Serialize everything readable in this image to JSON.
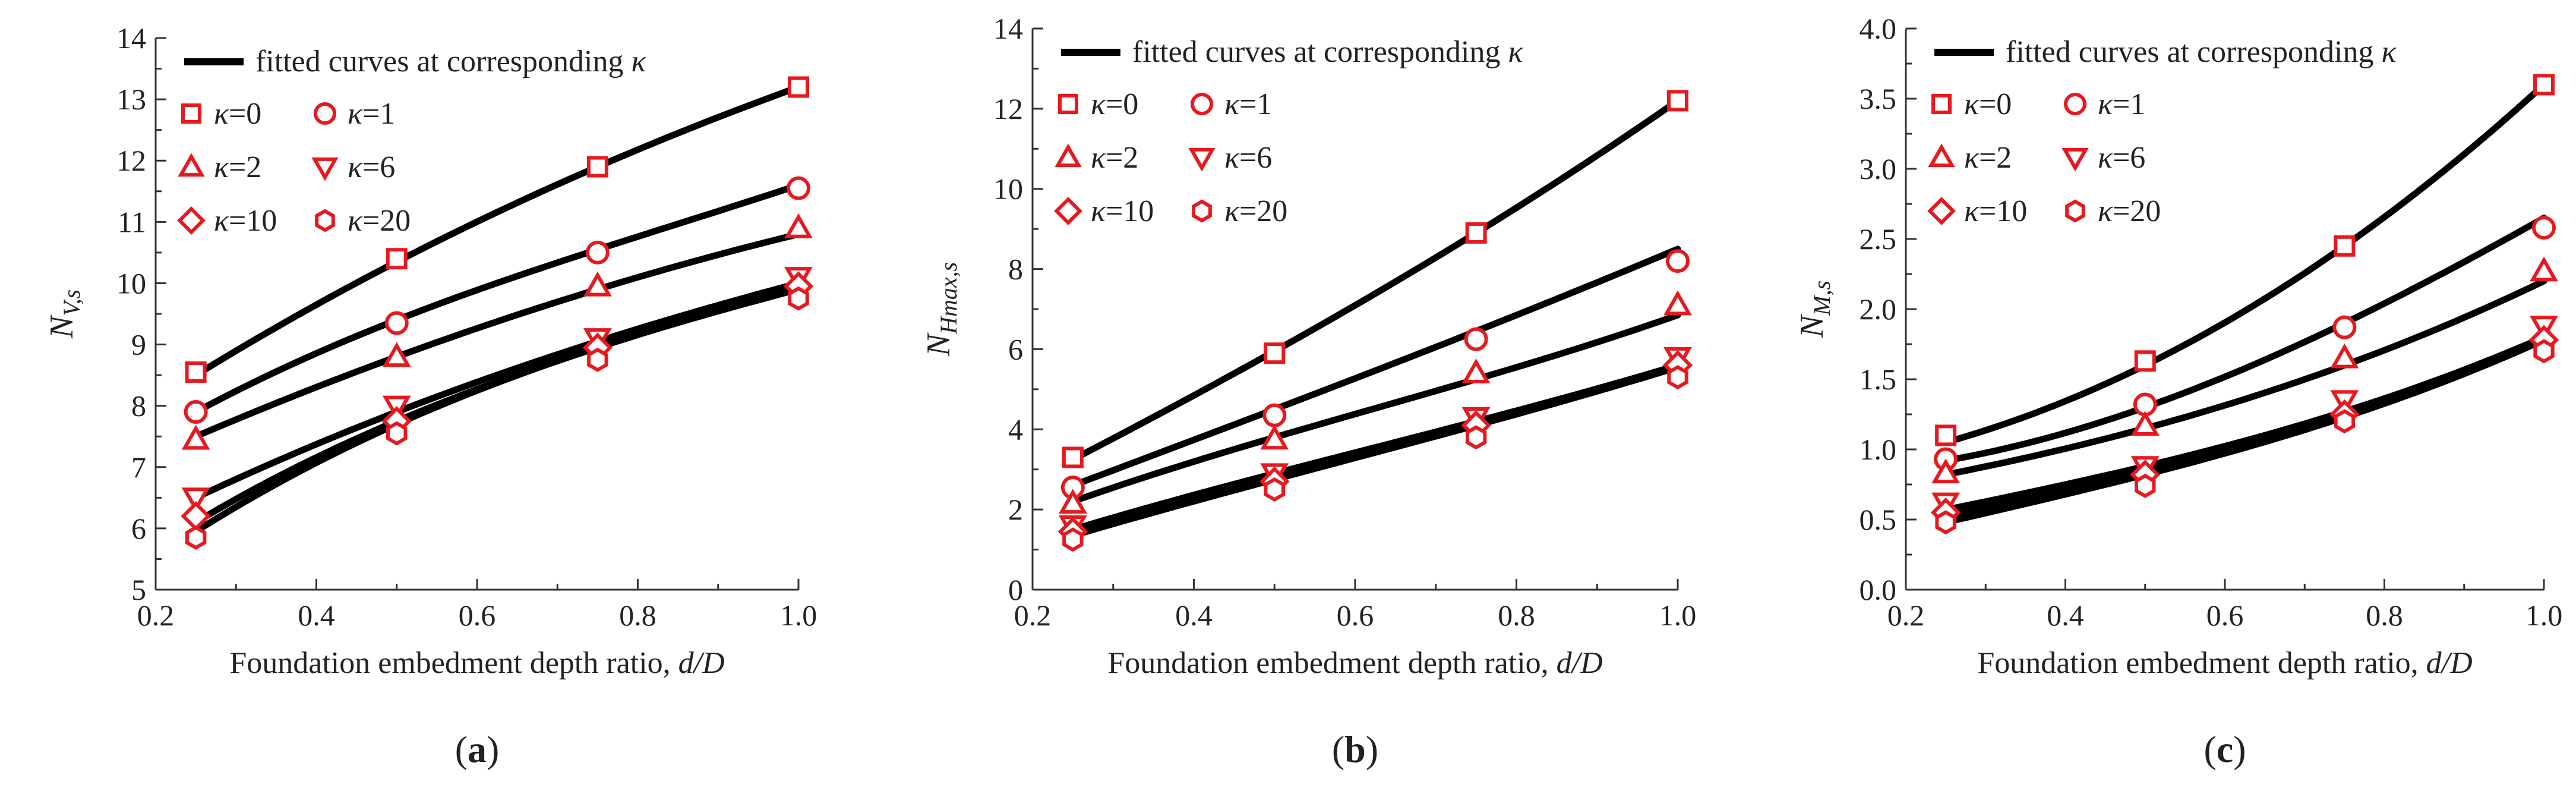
{
  "figure": {
    "x_label": "Foundation embedment depth ratio, d/D",
    "legend_line_label": "fitted curves at corresponding κ",
    "marker_color": "#e8191e",
    "line_color": "#000000",
    "legend_entries": [
      {
        "label": "κ=0",
        "marker": "square"
      },
      {
        "label": "κ=1",
        "marker": "circle"
      },
      {
        "label": "κ=2",
        "marker": "triangle-up"
      },
      {
        "label": "κ=6",
        "marker": "triangle-down"
      },
      {
        "label": "κ=10",
        "marker": "diamond"
      },
      {
        "label": "κ=20",
        "marker": "hexagon"
      }
    ]
  },
  "chart_data": [
    {
      "type": "line",
      "panel_label": "(a)",
      "ylabel": "NV,s",
      "xlabel": "Foundation embedment depth ratio, d/D",
      "xlim": [
        0.2,
        1.0
      ],
      "ylim": [
        5,
        14
      ],
      "xticks": [
        "0.2",
        "0.4",
        "0.6",
        "0.8",
        "1.0"
      ],
      "yticks": [
        "5",
        "6",
        "7",
        "8",
        "9",
        "10",
        "11",
        "12",
        "13",
        "14"
      ],
      "x": [
        0.25,
        0.5,
        0.75,
        1.0
      ],
      "series": [
        {
          "name": "κ=0",
          "marker": "square",
          "values": [
            8.55,
            10.4,
            11.9,
            13.2
          ],
          "fit": [
            8.5,
            10.35,
            11.9,
            13.2
          ]
        },
        {
          "name": "κ=1",
          "marker": "circle",
          "values": [
            7.9,
            9.35,
            10.5,
            11.55
          ],
          "fit": [
            7.9,
            9.4,
            10.55,
            11.6
          ]
        },
        {
          "name": "κ=2",
          "marker": "triangle-up",
          "values": [
            7.45,
            8.8,
            9.95,
            10.9
          ],
          "fit": [
            7.5,
            8.8,
            9.9,
            10.8
          ]
        },
        {
          "name": "κ=6",
          "marker": "triangle-down",
          "values": [
            6.5,
            8.0,
            9.1,
            10.1
          ],
          "fit": [
            6.5,
            7.9,
            9.05,
            10.0
          ]
        },
        {
          "name": "κ=10",
          "marker": "diamond",
          "values": [
            6.2,
            7.75,
            8.95,
            9.95
          ],
          "fit": [
            6.1,
            7.75,
            8.95,
            9.95
          ]
        },
        {
          "name": "κ=20",
          "marker": "hexagon",
          "values": [
            5.85,
            7.55,
            8.75,
            9.75
          ],
          "fit": [
            5.95,
            7.7,
            8.95,
            9.9
          ]
        }
      ]
    },
    {
      "type": "line",
      "panel_label": "(b)",
      "ylabel": "NHmax,s",
      "xlabel": "Foundation embedment depth ratio, d/D",
      "xlim": [
        0.2,
        1.0
      ],
      "ylim": [
        0,
        14
      ],
      "xticks": [
        "0.2",
        "0.4",
        "0.6",
        "0.8",
        "1.0"
      ],
      "yticks": [
        "0",
        "2",
        "4",
        "6",
        "8",
        "10",
        "12",
        "14"
      ],
      "x": [
        0.25,
        0.5,
        0.75,
        1.0
      ],
      "series": [
        {
          "name": "κ=0",
          "marker": "square",
          "values": [
            3.3,
            5.9,
            8.9,
            12.2
          ],
          "fit": [
            3.25,
            5.95,
            8.9,
            12.2
          ]
        },
        {
          "name": "κ=1",
          "marker": "circle",
          "values": [
            2.55,
            4.35,
            6.25,
            8.2
          ],
          "fit": [
            2.6,
            4.5,
            6.45,
            8.5
          ]
        },
        {
          "name": "κ=2",
          "marker": "triangle-up",
          "values": [
            2.15,
            3.75,
            5.4,
            7.1
          ],
          "fit": [
            2.2,
            3.8,
            5.25,
            6.85
          ]
        },
        {
          "name": "κ=6",
          "marker": "triangle-down",
          "values": [
            1.6,
            2.9,
            4.3,
            5.8
          ],
          "fit": [
            1.5,
            2.9,
            4.2,
            5.6
          ]
        },
        {
          "name": "κ=10",
          "marker": "diamond",
          "values": [
            1.45,
            2.7,
            4.1,
            5.6
          ],
          "fit": [
            1.4,
            2.8,
            4.15,
            5.6
          ]
        },
        {
          "name": "κ=20",
          "marker": "hexagon",
          "values": [
            1.25,
            2.5,
            3.8,
            5.3
          ],
          "fit": [
            1.35,
            2.75,
            4.1,
            5.55
          ]
        }
      ]
    },
    {
      "type": "line",
      "panel_label": "(c)",
      "ylabel": "NM,s",
      "xlabel": "Foundation embedment depth ratio, d/D",
      "xlim": [
        0.2,
        1.0
      ],
      "ylim": [
        0.0,
        4.0
      ],
      "xticks": [
        "0.2",
        "0.4",
        "0.6",
        "0.8",
        "1.0"
      ],
      "yticks": [
        "0.0",
        "0.5",
        "1.0",
        "1.5",
        "2.0",
        "2.5",
        "3.0",
        "3.5",
        "4.0"
      ],
      "x": [
        0.25,
        0.5,
        0.75,
        1.0
      ],
      "series": [
        {
          "name": "κ=0",
          "marker": "square",
          "values": [
            1.1,
            1.63,
            2.45,
            3.6
          ],
          "fit": [
            1.05,
            1.6,
            2.45,
            3.6
          ]
        },
        {
          "name": "κ=1",
          "marker": "circle",
          "values": [
            0.93,
            1.32,
            1.87,
            2.58
          ],
          "fit": [
            0.92,
            1.3,
            1.9,
            2.65
          ]
        },
        {
          "name": "κ=2",
          "marker": "triangle-up",
          "values": [
            0.83,
            1.17,
            1.65,
            2.27
          ],
          "fit": [
            0.82,
            1.15,
            1.6,
            2.2
          ]
        },
        {
          "name": "κ=6",
          "marker": "triangle-down",
          "values": [
            0.62,
            0.88,
            1.35,
            1.88
          ],
          "fit": [
            0.57,
            0.88,
            1.27,
            1.8
          ]
        },
        {
          "name": "κ=10",
          "marker": "diamond",
          "values": [
            0.55,
            0.82,
            1.25,
            1.78
          ],
          "fit": [
            0.52,
            0.85,
            1.25,
            1.79
          ]
        },
        {
          "name": "κ=20",
          "marker": "hexagon",
          "values": [
            0.48,
            0.74,
            1.2,
            1.7
          ],
          "fit": [
            0.48,
            0.82,
            1.23,
            1.78
          ]
        }
      ]
    }
  ]
}
